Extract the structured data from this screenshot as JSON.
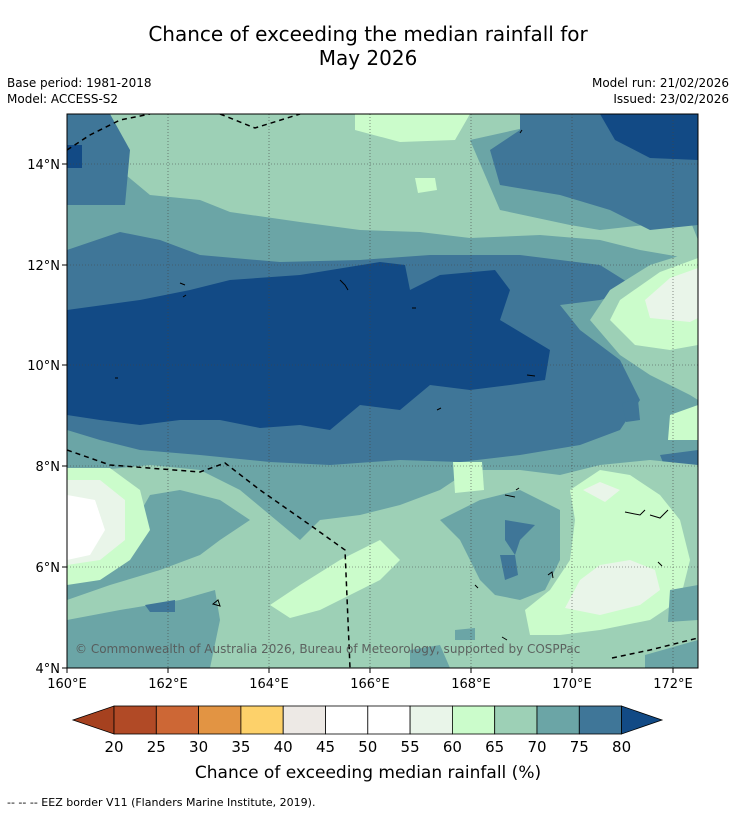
{
  "title_line1": "Chance of exceeding the median rainfall for",
  "title_line2": "May 2026",
  "base_period": "Base period: 1981-2018",
  "model": "Model: ACCESS-S2",
  "model_run": "Model run: 21/02/2026",
  "issued": "Issued: 23/02/2026",
  "credit": "© Commonwealth of Australia 2026, Bureau of Meteorology, supported by COSPPac",
  "x_ticks": [
    "160°E",
    "162°E",
    "164°E",
    "166°E",
    "168°E",
    "170°E",
    "172°E"
  ],
  "y_ticks": [
    "14°N",
    "12°N",
    "10°N",
    "8°N",
    "6°N",
    "4°N"
  ],
  "colorbar": {
    "label": "Chance of exceeding median rainfall (%)",
    "ticks": [
      "20",
      "25",
      "30",
      "35",
      "40",
      "45",
      "50",
      "55",
      "60",
      "65",
      "70",
      "75",
      "80"
    ],
    "colors": [
      "#a6411f",
      "#b14a26",
      "#cd6735",
      "#e29443",
      "#fdd16a",
      "#ede9e5",
      "#ffffff",
      "#ffffff",
      "#e9f5e9",
      "#cbfccb",
      "#9dd0b6",
      "#6ba5a6",
      "#3f7698",
      "#124a85"
    ]
  },
  "footnote": "-- -- -- EEZ border V11 (Flanders Marine Institute, 2019)."
}
